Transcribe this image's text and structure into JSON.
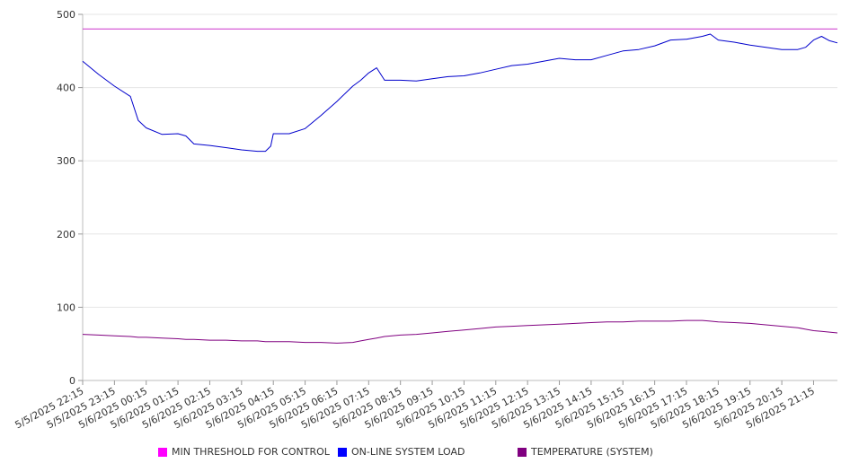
{
  "chart_data": {
    "type": "line",
    "title": "",
    "xlabel": "",
    "ylabel": "",
    "ylim": [
      0,
      500
    ],
    "yticks": [
      0,
      100,
      200,
      300,
      400,
      500
    ],
    "grid": true,
    "legend_position": "bottom",
    "x_tick_labels": [
      "5/5/2025 22:15",
      "5/5/2025 23:15",
      "5/6/2025 00:15",
      "5/6/2025 01:15",
      "5/6/2025 02:15",
      "5/6/2025 03:15",
      "5/6/2025 04:15",
      "5/6/2025 05:15",
      "5/6/2025 06:15",
      "5/6/2025 07:15",
      "5/6/2025 08:15",
      "5/6/2025 09:15",
      "5/6/2025 10:15",
      "5/6/2025 11:15",
      "5/6/2025 12:15",
      "5/6/2025 13:15",
      "5/6/2025 14:15",
      "5/6/2025 15:15",
      "5/6/2025 16:15",
      "5/6/2025 17:15",
      "5/6/2025 18:15",
      "5/6/2025 19:15",
      "5/6/2025 20:15",
      "5/6/2025 21:15"
    ],
    "x": [
      "5/5/2025 22:15",
      "5/5/2025 22:45",
      "5/5/2025 23:15",
      "5/5/2025 23:45",
      "5/6/2025 00:00",
      "5/6/2025 00:15",
      "5/6/2025 00:45",
      "5/6/2025 01:15",
      "5/6/2025 01:30",
      "5/6/2025 01:45",
      "5/6/2025 02:15",
      "5/6/2025 02:45",
      "5/6/2025 03:15",
      "5/6/2025 03:45",
      "5/6/2025 04:00",
      "5/6/2025 04:10",
      "5/6/2025 04:15",
      "5/6/2025 04:45",
      "5/6/2025 05:15",
      "5/6/2025 05:45",
      "5/6/2025 06:15",
      "5/6/2025 06:45",
      "5/6/2025 07:00",
      "5/6/2025 07:15",
      "5/6/2025 07:30",
      "5/6/2025 07:45",
      "5/6/2025 08:15",
      "5/6/2025 08:45",
      "5/6/2025 09:15",
      "5/6/2025 09:45",
      "5/6/2025 10:15",
      "5/6/2025 10:45",
      "5/6/2025 11:15",
      "5/6/2025 11:45",
      "5/6/2025 12:15",
      "5/6/2025 12:45",
      "5/6/2025 13:15",
      "5/6/2025 13:45",
      "5/6/2025 14:15",
      "5/6/2025 14:45",
      "5/6/2025 15:15",
      "5/6/2025 15:45",
      "5/6/2025 16:15",
      "5/6/2025 16:45",
      "5/6/2025 17:15",
      "5/6/2025 17:45",
      "5/6/2025 18:00",
      "5/6/2025 18:15",
      "5/6/2025 18:45",
      "5/6/2025 19:15",
      "5/6/2025 19:45",
      "5/6/2025 20:15",
      "5/6/2025 20:45",
      "5/6/2025 21:00",
      "5/6/2025 21:15",
      "5/6/2025 21:30",
      "5/6/2025 21:45",
      "5/6/2025 22:00"
    ],
    "series": [
      {
        "name": "MIN THRESHOLD FOR CONTROL",
        "color": "#cc33cc",
        "values": [
          480,
          480,
          480,
          480,
          480,
          480,
          480,
          480,
          480,
          480,
          480,
          480,
          480,
          480,
          480,
          480,
          480,
          480,
          480,
          480,
          480,
          480,
          480,
          480,
          480,
          480,
          480,
          480,
          480,
          480,
          480,
          480,
          480,
          480,
          480,
          480,
          480,
          480,
          480,
          480,
          480,
          480,
          480,
          480,
          480,
          480,
          480,
          480,
          480,
          480,
          480,
          480,
          480,
          480,
          480,
          480,
          480,
          480
        ]
      },
      {
        "name": "ON-LINE SYSTEM LOAD",
        "color": "#0000cc",
        "values": [
          436,
          418,
          402,
          388,
          355,
          345,
          336,
          337,
          334,
          323,
          321,
          318,
          315,
          313,
          313,
          320,
          337,
          337,
          344,
          362,
          381,
          402,
          410,
          420,
          427,
          410,
          410,
          409,
          412,
          415,
          416,
          420,
          425,
          430,
          432,
          436,
          440,
          438,
          438,
          444,
          450,
          452,
          457,
          465,
          466,
          470,
          473,
          465,
          462,
          458,
          455,
          452,
          452,
          455,
          465,
          470,
          464,
          461
        ]
      },
      {
        "name": "TEMPERATURE (SYSTEM)",
        "color": "#800080",
        "values": [
          63,
          62,
          61,
          60,
          59,
          59,
          58,
          57,
          56,
          56,
          55,
          55,
          54,
          54,
          53,
          53,
          53,
          53,
          52,
          52,
          51,
          52,
          54,
          56,
          58,
          60,
          62,
          63,
          65,
          67,
          69,
          71,
          73,
          74,
          75,
          76,
          77,
          78,
          79,
          80,
          80,
          81,
          81,
          81,
          82,
          82,
          81,
          80,
          79,
          78,
          76,
          74,
          72,
          70,
          68,
          67,
          66,
          65
        ]
      }
    ]
  }
}
